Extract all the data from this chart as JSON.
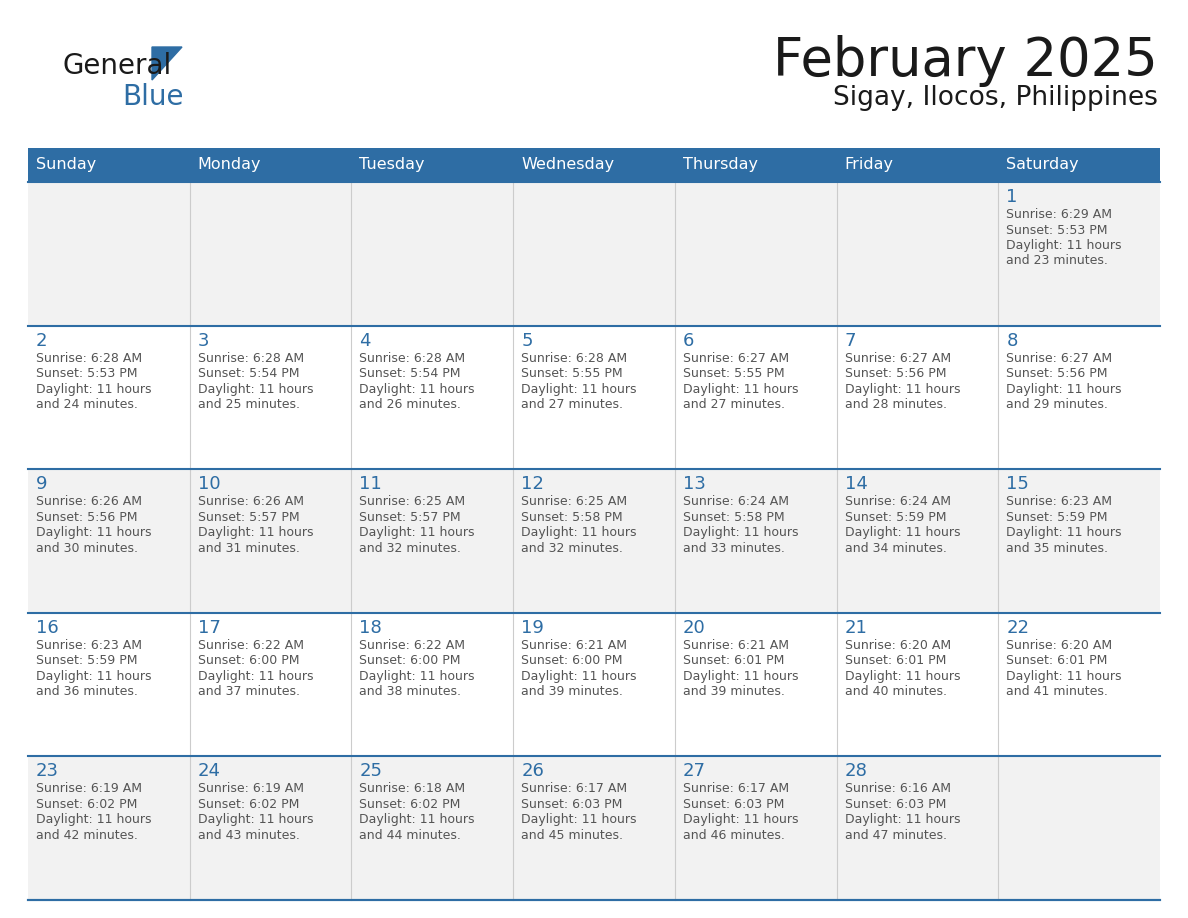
{
  "title": "February 2025",
  "subtitle": "Sigay, Ilocos, Philippines",
  "days_of_week": [
    "Sunday",
    "Monday",
    "Tuesday",
    "Wednesday",
    "Thursday",
    "Friday",
    "Saturday"
  ],
  "header_bg": "#2E6DA4",
  "header_text": "#FFFFFF",
  "cell_bg_light": "#F2F2F2",
  "cell_bg_white": "#FFFFFF",
  "day_num_color": "#2E6DA4",
  "text_color": "#555555",
  "row_line_color": "#2E6DA4",
  "col_line_color": "#CCCCCC",
  "calendar_data": [
    [
      null,
      null,
      null,
      null,
      null,
      null,
      {
        "day": 1,
        "sunrise": "6:29 AM",
        "sunset": "5:53 PM",
        "daylight": "11 hours and 23 minutes"
      }
    ],
    [
      {
        "day": 2,
        "sunrise": "6:28 AM",
        "sunset": "5:53 PM",
        "daylight": "11 hours and 24 minutes"
      },
      {
        "day": 3,
        "sunrise": "6:28 AM",
        "sunset": "5:54 PM",
        "daylight": "11 hours and 25 minutes"
      },
      {
        "day": 4,
        "sunrise": "6:28 AM",
        "sunset": "5:54 PM",
        "daylight": "11 hours and 26 minutes"
      },
      {
        "day": 5,
        "sunrise": "6:28 AM",
        "sunset": "5:55 PM",
        "daylight": "11 hours and 27 minutes"
      },
      {
        "day": 6,
        "sunrise": "6:27 AM",
        "sunset": "5:55 PM",
        "daylight": "11 hours and 27 minutes"
      },
      {
        "day": 7,
        "sunrise": "6:27 AM",
        "sunset": "5:56 PM",
        "daylight": "11 hours and 28 minutes"
      },
      {
        "day": 8,
        "sunrise": "6:27 AM",
        "sunset": "5:56 PM",
        "daylight": "11 hours and 29 minutes"
      }
    ],
    [
      {
        "day": 9,
        "sunrise": "6:26 AM",
        "sunset": "5:56 PM",
        "daylight": "11 hours and 30 minutes"
      },
      {
        "day": 10,
        "sunrise": "6:26 AM",
        "sunset": "5:57 PM",
        "daylight": "11 hours and 31 minutes"
      },
      {
        "day": 11,
        "sunrise": "6:25 AM",
        "sunset": "5:57 PM",
        "daylight": "11 hours and 32 minutes"
      },
      {
        "day": 12,
        "sunrise": "6:25 AM",
        "sunset": "5:58 PM",
        "daylight": "11 hours and 32 minutes"
      },
      {
        "day": 13,
        "sunrise": "6:24 AM",
        "sunset": "5:58 PM",
        "daylight": "11 hours and 33 minutes"
      },
      {
        "day": 14,
        "sunrise": "6:24 AM",
        "sunset": "5:59 PM",
        "daylight": "11 hours and 34 minutes"
      },
      {
        "day": 15,
        "sunrise": "6:23 AM",
        "sunset": "5:59 PM",
        "daylight": "11 hours and 35 minutes"
      }
    ],
    [
      {
        "day": 16,
        "sunrise": "6:23 AM",
        "sunset": "5:59 PM",
        "daylight": "11 hours and 36 minutes"
      },
      {
        "day": 17,
        "sunrise": "6:22 AM",
        "sunset": "6:00 PM",
        "daylight": "11 hours and 37 minutes"
      },
      {
        "day": 18,
        "sunrise": "6:22 AM",
        "sunset": "6:00 PM",
        "daylight": "11 hours and 38 minutes"
      },
      {
        "day": 19,
        "sunrise": "6:21 AM",
        "sunset": "6:00 PM",
        "daylight": "11 hours and 39 minutes"
      },
      {
        "day": 20,
        "sunrise": "6:21 AM",
        "sunset": "6:01 PM",
        "daylight": "11 hours and 39 minutes"
      },
      {
        "day": 21,
        "sunrise": "6:20 AM",
        "sunset": "6:01 PM",
        "daylight": "11 hours and 40 minutes"
      },
      {
        "day": 22,
        "sunrise": "6:20 AM",
        "sunset": "6:01 PM",
        "daylight": "11 hours and 41 minutes"
      }
    ],
    [
      {
        "day": 23,
        "sunrise": "6:19 AM",
        "sunset": "6:02 PM",
        "daylight": "11 hours and 42 minutes"
      },
      {
        "day": 24,
        "sunrise": "6:19 AM",
        "sunset": "6:02 PM",
        "daylight": "11 hours and 43 minutes"
      },
      {
        "day": 25,
        "sunrise": "6:18 AM",
        "sunset": "6:02 PM",
        "daylight": "11 hours and 44 minutes"
      },
      {
        "day": 26,
        "sunrise": "6:17 AM",
        "sunset": "6:03 PM",
        "daylight": "11 hours and 45 minutes"
      },
      {
        "day": 27,
        "sunrise": "6:17 AM",
        "sunset": "6:03 PM",
        "daylight": "11 hours and 46 minutes"
      },
      {
        "day": 28,
        "sunrise": "6:16 AM",
        "sunset": "6:03 PM",
        "daylight": "11 hours and 47 minutes"
      },
      null
    ]
  ]
}
